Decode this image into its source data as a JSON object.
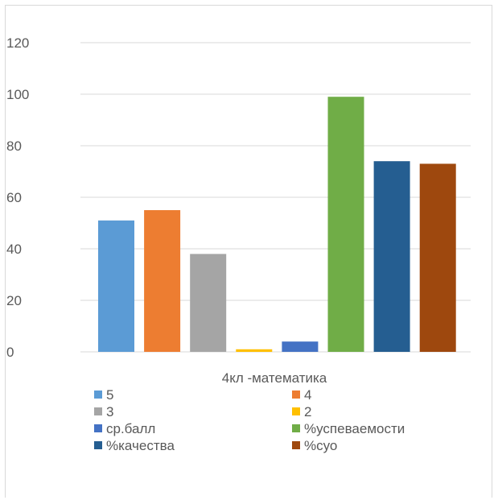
{
  "chart_data": {
    "type": "bar",
    "title": "",
    "xlabel": "",
    "ylabel": "",
    "categories": [
      "4кл -математика"
    ],
    "series": [
      {
        "name": "5",
        "values": [
          51
        ],
        "color": "#5b9bd5"
      },
      {
        "name": "4",
        "values": [
          55
        ],
        "color": "#ed7d31"
      },
      {
        "name": "3",
        "values": [
          38
        ],
        "color": "#a5a5a5"
      },
      {
        "name": "2",
        "values": [
          1
        ],
        "color": "#ffc000"
      },
      {
        "name": "ср.балл",
        "values": [
          4
        ],
        "color": "#4472c4"
      },
      {
        "name": "%успеваемости",
        "values": [
          99
        ],
        "color": "#70ad47"
      },
      {
        "name": "%качества",
        "values": [
          74
        ],
        "color": "#255e91"
      },
      {
        "name": "%суо",
        "values": [
          73
        ],
        "color": "#9e480e"
      }
    ],
    "ylim": [
      0,
      120
    ],
    "yticks": [
      0,
      20,
      40,
      60,
      80,
      100,
      120
    ],
    "grid": true,
    "legend": "bottom"
  }
}
